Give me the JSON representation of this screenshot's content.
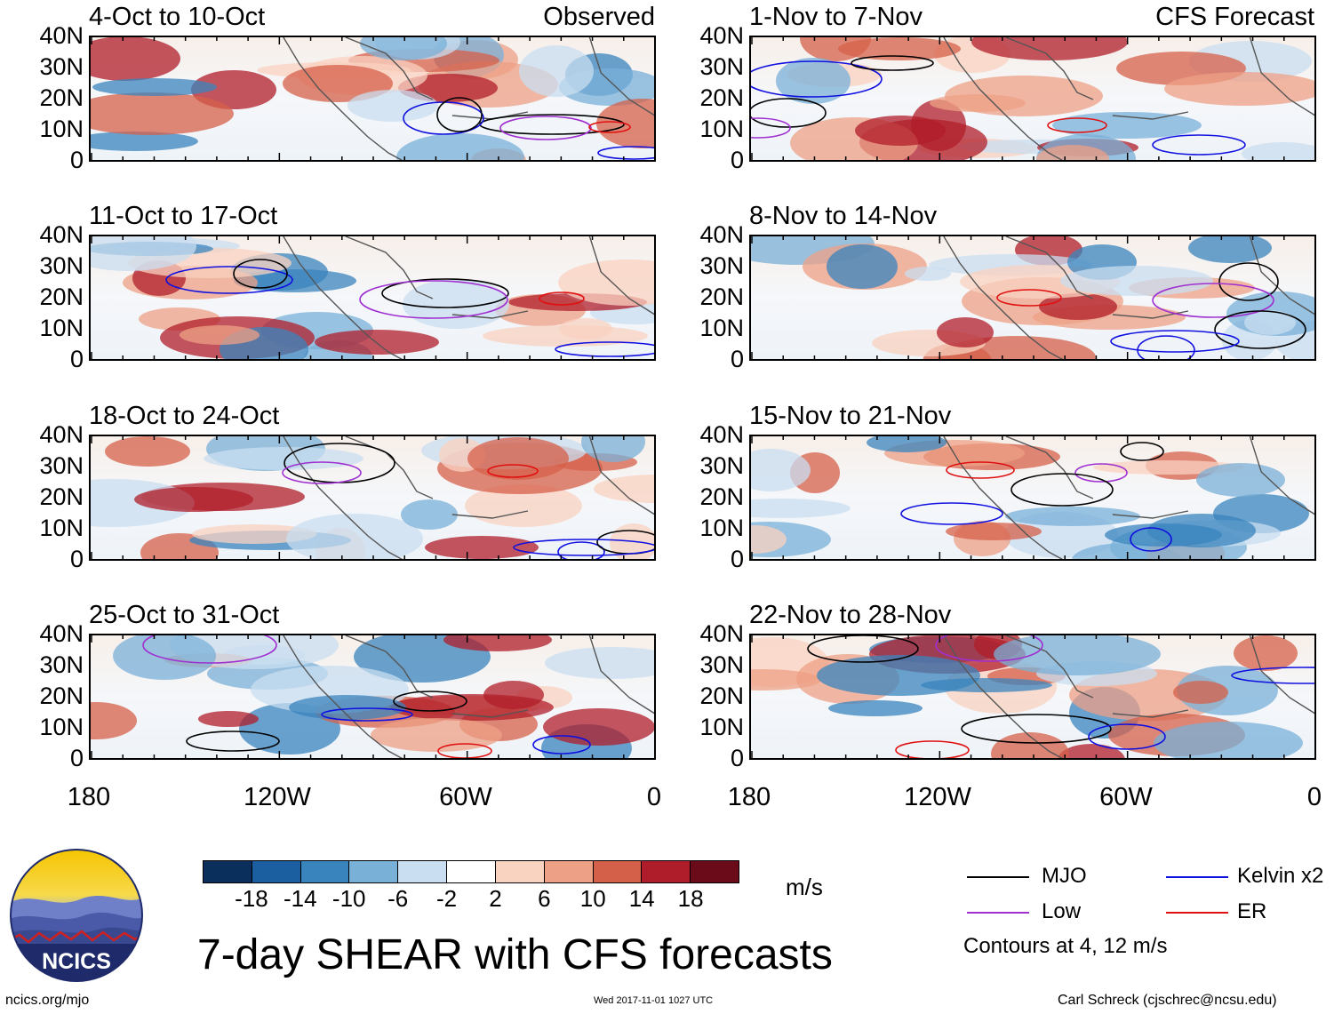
{
  "panel_tags": {
    "left": "Observed",
    "right": "CFS Forecast"
  },
  "observed_periods": [
    "4-Oct to 10-Oct",
    "11-Oct to 17-Oct",
    "18-Oct to 24-Oct",
    "25-Oct to 31-Oct"
  ],
  "forecast_periods": [
    "1-Nov to 7-Nov",
    "8-Nov to 14-Nov",
    "15-Nov to 21-Nov",
    "22-Nov to 28-Nov"
  ],
  "lat_labels": [
    "40N",
    "30N",
    "20N",
    "10N",
    "0"
  ],
  "lon_labels": [
    "180",
    "120W",
    "60W",
    "0"
  ],
  "colorbar": {
    "unit": "m/s",
    "labels": [
      "-18",
      "-14",
      "-10",
      "-6",
      "-2",
      "2",
      "6",
      "10",
      "14",
      "18"
    ],
    "colors": [
      "#0b2f5c",
      "#1c5fa0",
      "#3a84be",
      "#79b0d8",
      "#c9def0",
      "#ffffff",
      "#f9d2c0",
      "#eea086",
      "#d5604a",
      "#b01d2a",
      "#6b0a18"
    ]
  },
  "legend": {
    "items": [
      {
        "label": "MJO",
        "color": "#000000"
      },
      {
        "label": "Kelvin x2",
        "color": "#1010e0"
      },
      {
        "label": "Low",
        "color": "#a030d0"
      },
      {
        "label": "ER",
        "color": "#e01010"
      }
    ],
    "note": "Contours at 4, 12 m/s"
  },
  "title": "7-day SHEAR with CFS forecasts",
  "logo_text": "NCICS",
  "footer": {
    "website": "ncics.org/mjo",
    "timestamp": "Wed 2017-11-01 1027 UTC",
    "credit": "Carl Schreck (cjschrec@ncsu.edu)"
  }
}
